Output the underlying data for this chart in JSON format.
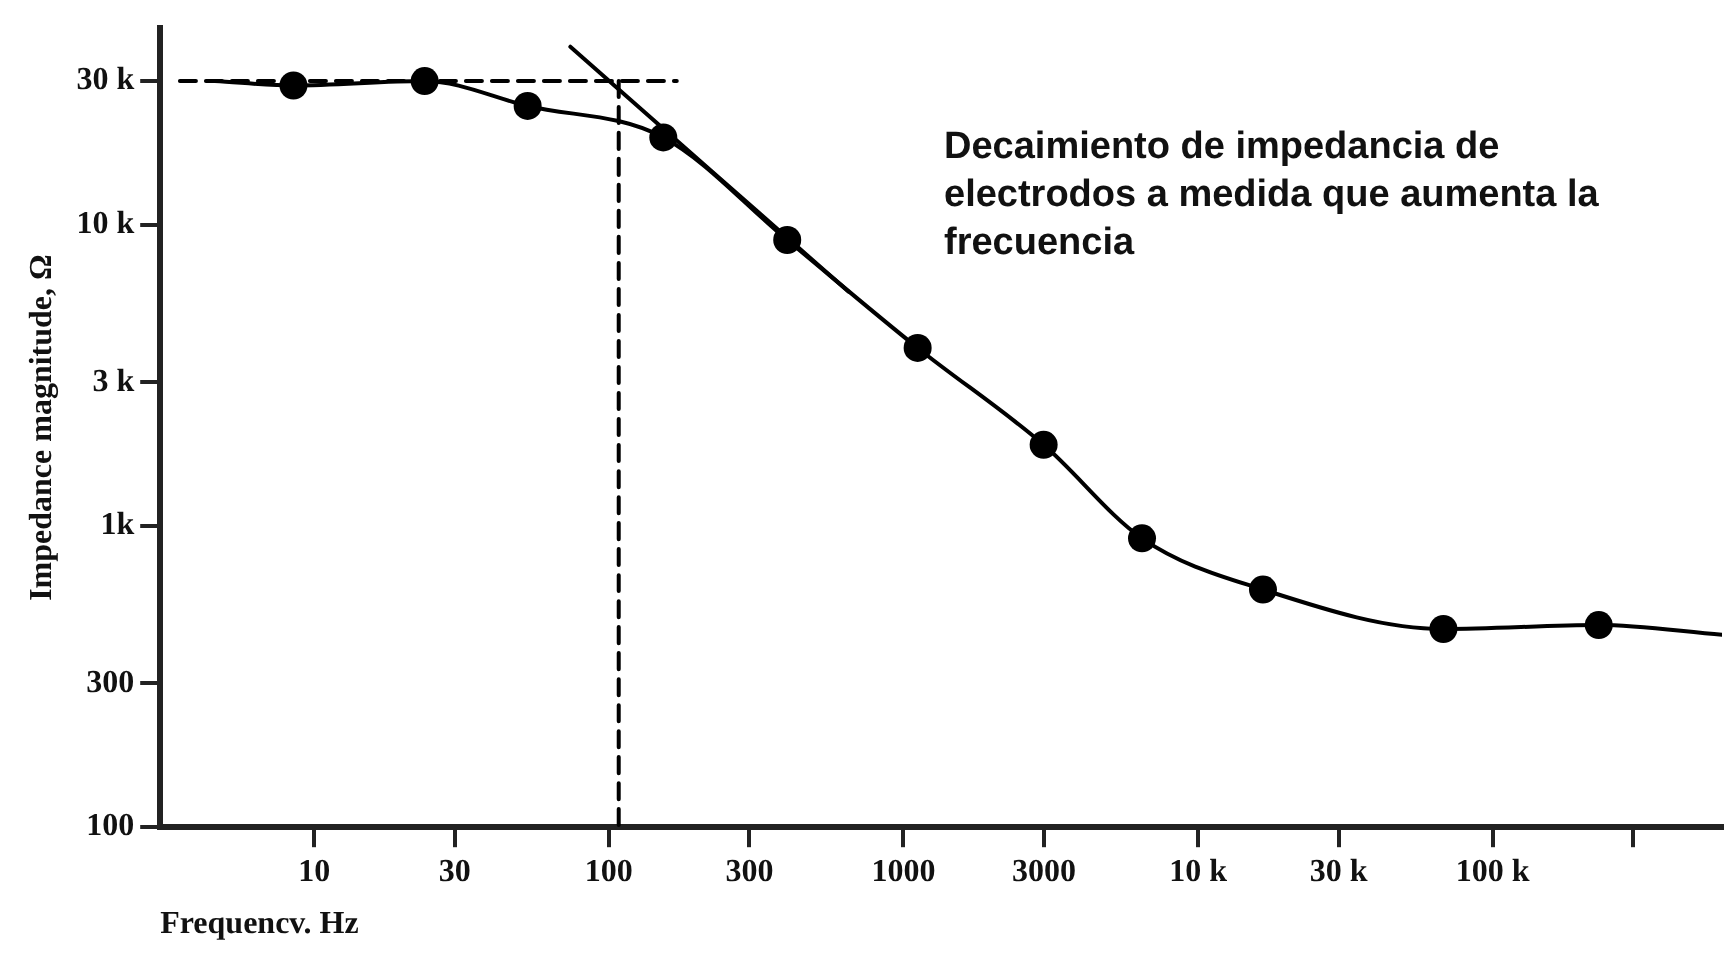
{
  "chart_data": {
    "type": "line",
    "xlabel": "Frequencv. Hz",
    "ylabel": "Impedance magnitude, Ω",
    "annotations": [
      "Decaimiento de impedancia de electrodos a medida que aumenta la frecuencia"
    ],
    "log": "xy",
    "grid": false,
    "legend": false,
    "xlim": [
      3,
      600000
    ],
    "xticks": [
      10,
      30,
      100,
      300,
      1000,
      3000,
      {
        "value": 10000,
        "label": "10 k"
      },
      {
        "value": 30000,
        "label": "30 k"
      },
      {
        "value": 100000,
        "label": "100 k"
      },
      {
        "value": 300000,
        "label": null
      }
    ],
    "ylim": [
      100,
      45000
    ],
    "yticks": [
      100,
      300,
      {
        "value": 1000,
        "label": "1k"
      },
      {
        "value": 3000,
        "label": "3 k"
      },
      {
        "value": 10000,
        "label": "10 k"
      },
      {
        "value": 30000,
        "label": "30 k"
      }
    ],
    "series": [
      {
        "type": "line",
        "color": "#000000",
        "marker": "none",
        "line_style": "solid",
        "x": [
          4.6,
          8.5,
          23.7,
          53,
          153,
          403,
          1117,
          2990,
          6450,
          16600,
          68000,
          229000,
          600000
        ],
        "values": [
          30000,
          29000,
          30000,
          24800,
          19500,
          8900,
          3900,
          1860,
          910,
          615,
          455,
          469,
          435
        ]
      },
      {
        "type": "line",
        "color": "#000000",
        "marker": "none",
        "line_style": "solid",
        "x": [
          74,
          650
        ],
        "values": [
          39000,
          6000
        ]
      },
      {
        "type": "line",
        "color": "#000000",
        "marker": "none",
        "line_style": "dashed",
        "x": [
          3.5,
          170
        ],
        "values": [
          30000,
          30000
        ]
      },
      {
        "type": "line",
        "color": "#000000",
        "marker": "none",
        "line_style": "dashed",
        "x": [
          108,
          108
        ],
        "values": [
          30000,
          100
        ]
      },
      {
        "type": "scatter",
        "color": "#000000",
        "marker": "circle",
        "x": [
          8.5,
          23.7,
          53,
          153,
          403,
          1117,
          2990,
          6450,
          16600,
          68000,
          229000
        ],
        "values": [
          29000,
          30000,
          24800,
          19500,
          8900,
          3900,
          1860,
          910,
          615,
          455,
          469
        ]
      }
    ]
  }
}
